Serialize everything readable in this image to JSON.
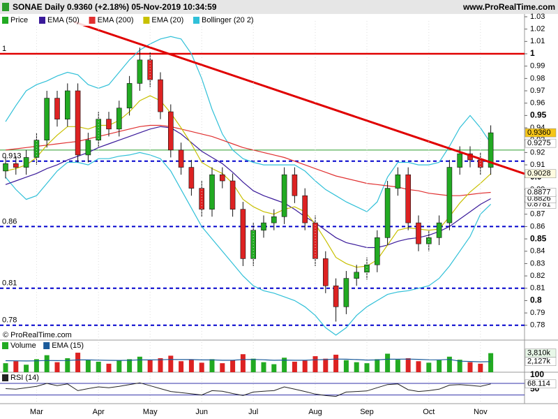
{
  "chart_data": [
    {
      "type": "candlestick",
      "title": "SONAE Daily 0.9360 (+2.18%) 05-Nov-2019 10:34:59",
      "source": "www.ProRealTime.com",
      "watermark": "© ProRealTime.com",
      "categories": [
        null,
        null,
        null,
        "Mar",
        null,
        null,
        null,
        null,
        null,
        "Apr",
        null,
        null,
        null,
        null,
        "May",
        null,
        null,
        null,
        null,
        "Jun",
        null,
        null,
        null,
        null,
        "Jul",
        null,
        null,
        null,
        null,
        null,
        "Aug",
        null,
        null,
        null,
        null,
        "Sep",
        null,
        null,
        null,
        null,
        null,
        "Oct",
        null,
        null,
        null,
        null,
        "Nov",
        null
      ],
      "series": [
        {
          "name": "Price",
          "up_color": "#22aa22",
          "down_color": "#dd2222",
          "last_label": "0.9360",
          "open": [
            0.905,
            0.911,
            0.908,
            0.916,
            0.93,
            0.964,
            0.947,
            0.97,
            0.918,
            0.93,
            0.947,
            0.939,
            0.956,
            0.976,
            0.995,
            0.979,
            0.953,
            0.922,
            0.908,
            0.891,
            0.874,
            0.902,
            0.897,
            0.874,
            0.834,
            0.857,
            0.863,
            0.868,
            0.902,
            0.885,
            0.863,
            0.834,
            0.812,
            0.795,
            0.818,
            0.823,
            0.829,
            0.851,
            0.891,
            0.902,
            0.863,
            0.846,
            0.851,
            0.863,
            0.908,
            0.919,
            0.914,
            0.908
          ],
          "high": [
            0.917,
            0.917,
            0.922,
            0.936,
            0.97,
            0.97,
            0.976,
            0.976,
            0.936,
            0.953,
            0.953,
            0.962,
            0.982,
            1.005,
            1.001,
            0.985,
            0.959,
            0.928,
            0.914,
            0.897,
            0.908,
            0.908,
            0.903,
            0.88,
            0.863,
            0.869,
            0.874,
            0.908,
            0.908,
            0.891,
            0.869,
            0.84,
            0.818,
            0.824,
            0.829,
            0.835,
            0.857,
            0.897,
            0.908,
            0.908,
            0.869,
            0.857,
            0.869,
            0.914,
            0.925,
            0.925,
            0.92,
            0.942
          ],
          "low": [
            0.899,
            0.902,
            0.902,
            0.91,
            0.924,
            0.941,
            0.941,
            0.912,
            0.912,
            0.924,
            0.933,
            0.933,
            0.95,
            0.97,
            0.973,
            0.947,
            0.916,
            0.902,
            0.885,
            0.868,
            0.868,
            0.891,
            0.868,
            0.828,
            0.828,
            0.851,
            0.857,
            0.862,
            0.879,
            0.857,
            0.828,
            0.806,
            0.783,
            0.789,
            0.812,
            0.817,
            0.823,
            0.845,
            0.885,
            0.857,
            0.84,
            0.84,
            0.845,
            0.857,
            0.902,
            0.908,
            0.902,
            0.902
          ],
          "close": [
            0.911,
            0.908,
            0.916,
            0.93,
            0.964,
            0.947,
            0.97,
            0.918,
            0.93,
            0.947,
            0.939,
            0.956,
            0.976,
            0.995,
            0.979,
            0.953,
            0.922,
            0.908,
            0.891,
            0.874,
            0.902,
            0.897,
            0.874,
            0.834,
            0.857,
            0.863,
            0.868,
            0.902,
            0.885,
            0.863,
            0.834,
            0.812,
            0.795,
            0.818,
            0.823,
            0.829,
            0.851,
            0.891,
            0.902,
            0.863,
            0.846,
            0.851,
            0.863,
            0.908,
            0.919,
            0.914,
            0.908,
            0.936
          ]
        },
        {
          "name": "EMA (50)",
          "color": "#3a1a9a",
          "last_label": "0.8826",
          "values": [
            0.894,
            0.897,
            0.9,
            0.903,
            0.907,
            0.91,
            0.914,
            0.917,
            0.92,
            0.924,
            0.927,
            0.93,
            0.933,
            0.936,
            0.939,
            0.941,
            0.94,
            0.935,
            0.928,
            0.921,
            0.916,
            0.911,
            0.904,
            0.896,
            0.889,
            0.885,
            0.882,
            0.879,
            0.874,
            0.868,
            0.863,
            0.857,
            0.851,
            0.847,
            0.845,
            0.843,
            0.843,
            0.845,
            0.848,
            0.85,
            0.851,
            0.853,
            0.856,
            0.86,
            0.866,
            0.872,
            0.878,
            0.8826
          ]
        },
        {
          "name": "EMA (200)",
          "color": "#e03030",
          "last_label": "0.8877",
          "values": [
            0.922,
            0.923,
            0.924,
            0.925,
            0.926,
            0.927,
            0.928,
            0.929,
            0.931,
            0.933,
            0.935,
            0.937,
            0.939,
            0.941,
            0.942,
            0.942,
            0.941,
            0.939,
            0.937,
            0.935,
            0.933,
            0.93,
            0.927,
            0.924,
            0.922,
            0.92,
            0.918,
            0.916,
            0.913,
            0.91,
            0.907,
            0.904,
            0.901,
            0.899,
            0.897,
            0.895,
            0.894,
            0.893,
            0.892,
            0.89,
            0.889,
            0.887,
            0.886,
            0.885,
            0.885,
            0.886,
            0.887,
            0.8877
          ]
        },
        {
          "name": "EMA (20)",
          "color": "#c8c000",
          "last_label": "0.9028",
          "values": [
            0.905,
            0.907,
            0.91,
            0.916,
            0.926,
            0.934,
            0.941,
            0.941,
            0.939,
            0.942,
            0.942,
            0.946,
            0.953,
            0.962,
            0.966,
            0.962,
            0.952,
            0.94,
            0.927,
            0.912,
            0.907,
            0.903,
            0.895,
            0.882,
            0.876,
            0.872,
            0.87,
            0.874,
            0.876,
            0.872,
            0.862,
            0.849,
            0.835,
            0.83,
            0.827,
            0.828,
            0.833,
            0.845,
            0.857,
            0.859,
            0.858,
            0.857,
            0.858,
            0.868,
            0.879,
            0.888,
            0.895,
            0.9028
          ]
        },
        {
          "name": "Bollinger (20 2)",
          "color": "#30c0d8",
          "upper_label": "0.9275",
          "lower_label": "0.8781",
          "upper": [
            0.945,
            0.958,
            0.97,
            0.975,
            0.978,
            0.982,
            0.985,
            0.983,
            0.975,
            0.972,
            0.975,
            0.985,
            0.995,
            1.003,
            1.008,
            1.012,
            1.014,
            1.012,
            1.0,
            0.98,
            0.955,
            0.935,
            0.922,
            0.915,
            0.912,
            0.91,
            0.91,
            0.91,
            0.91,
            0.905,
            0.897,
            0.89,
            0.885,
            0.88,
            0.876,
            0.872,
            0.88,
            0.9,
            0.912,
            0.912,
            0.91,
            0.91,
            0.912,
            0.925,
            0.94,
            0.95,
            0.94,
            0.9275
          ],
          "lower": [
            0.9,
            0.89,
            0.882,
            0.885,
            0.895,
            0.905,
            0.912,
            0.912,
            0.91,
            0.915,
            0.915,
            0.917,
            0.918,
            0.92,
            0.918,
            0.915,
            0.905,
            0.89,
            0.875,
            0.86,
            0.85,
            0.84,
            0.83,
            0.82,
            0.812,
            0.808,
            0.806,
            0.803,
            0.8,
            0.795,
            0.788,
            0.778,
            0.772,
            0.778,
            0.788,
            0.795,
            0.8,
            0.805,
            0.807,
            0.808,
            0.81,
            0.812,
            0.818,
            0.828,
            0.84,
            0.852,
            0.87,
            0.8781
          ]
        }
      ],
      "trendline": {
        "x": [
          8,
          47
        ],
        "values": [
          1.022,
          0.912
        ],
        "color": "#e00000"
      },
      "levels": [
        {
          "value": 1,
          "label": "1",
          "color": "#e00000",
          "style": "solid"
        },
        {
          "value": 0.922,
          "color": "#2a9d2a",
          "style": "thin"
        },
        {
          "value": 0.913,
          "label": "0.913",
          "color": "#0000cc",
          "style": "dashed"
        },
        {
          "value": 0.86,
          "label": "0.86",
          "color": "#0000cc",
          "style": "dashed"
        },
        {
          "value": 0.81,
          "label": "0.81",
          "color": "#0000cc",
          "style": "dashed"
        },
        {
          "value": 0.78,
          "label": "0.78",
          "color": "#0000cc",
          "style": "dashed"
        }
      ],
      "ylim": [
        0.768,
        1.0266
      ],
      "yticks": [
        0.78,
        0.79,
        0.8,
        0.81,
        0.82,
        0.83,
        0.84,
        0.85,
        0.86,
        0.87,
        0.88,
        0.89,
        0.9,
        0.91,
        0.92,
        0.93,
        0.94,
        0.95,
        0.96,
        0.97,
        0.98,
        0.99,
        1,
        1.01,
        1.02,
        1.03
      ],
      "grid": true
    },
    {
      "type": "bar",
      "series": [
        {
          "name": "Volume",
          "last_label": "3,810k",
          "values": [
            1800,
            2200,
            1500,
            2600,
            3400,
            2000,
            2800,
            3900,
            2500,
            2100,
            1700,
            2300,
            2600,
            3100,
            2400,
            2800,
            3300,
            2200,
            2500,
            1900,
            2600,
            1800,
            2400,
            3600,
            2700,
            2000,
            1600,
            2900,
            2100,
            2300,
            3200,
            2700,
            3500,
            2400,
            2000,
            1800,
            2600,
            3700,
            2500,
            2800,
            2200,
            1900,
            2400,
            3100,
            2500,
            2000,
            1700,
            3810
          ]
        },
        {
          "name": "EMA (15)",
          "color": "#1a5a9a",
          "last_label": "2,127k",
          "values": [
            2300,
            2280,
            2250,
            2280,
            2350,
            2320,
            2350,
            2450,
            2450,
            2420,
            2370,
            2360,
            2390,
            2470,
            2460,
            2490,
            2560,
            2520,
            2520,
            2450,
            2470,
            2390,
            2390,
            2540,
            2560,
            2490,
            2380,
            2430,
            2390,
            2380,
            2490,
            2520,
            2630,
            2600,
            2520,
            2430,
            2450,
            2600,
            2590,
            2620,
            2570,
            2480,
            2470,
            2550,
            2200,
            2150,
            2080,
            2127
          ]
        }
      ],
      "ylim": [
        0,
        6000
      ]
    },
    {
      "type": "line",
      "series": [
        {
          "name": "RSI (14)",
          "color": "#222222",
          "last_label": "68.114",
          "values": [
            52,
            50,
            55,
            60,
            70,
            62,
            68,
            45,
            52,
            58,
            55,
            60,
            66,
            72,
            62,
            52,
            42,
            38,
            34,
            30,
            45,
            43,
            35,
            28,
            40,
            43,
            45,
            58,
            50,
            42,
            33,
            28,
            25,
            40,
            42,
            44,
            55,
            66,
            68,
            48,
            42,
            45,
            50,
            64,
            66,
            63,
            60,
            68.114
          ]
        }
      ],
      "ylim": [
        0,
        100
      ],
      "yticks": [
        50,
        100
      ],
      "levels": [
        30,
        70
      ]
    }
  ]
}
